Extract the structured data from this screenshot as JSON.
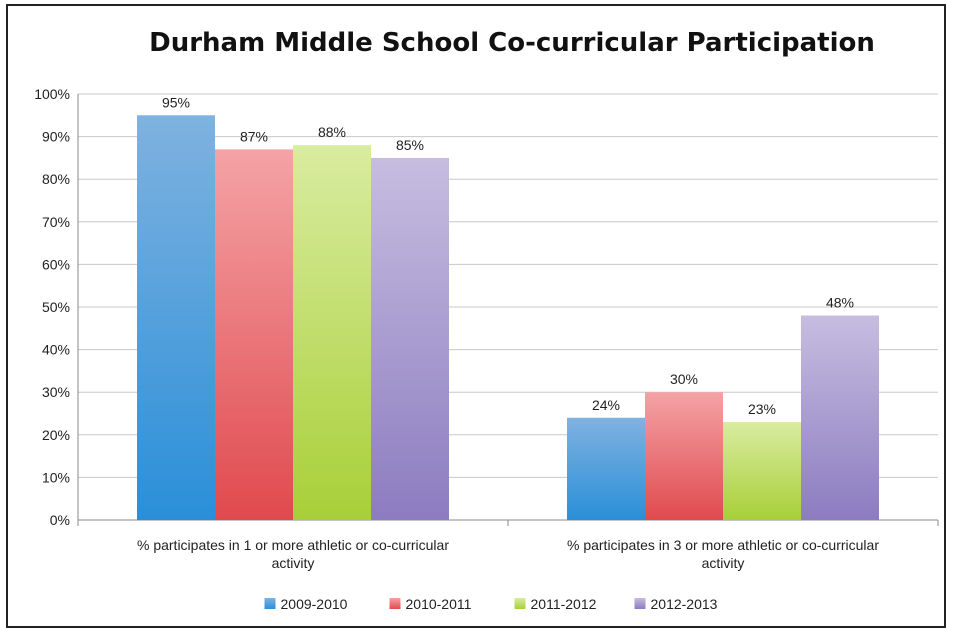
{
  "chart_data": {
    "type": "bar",
    "title": "Durham Middle School Co-curricular Participation",
    "categories": [
      [
        "% participates in 1 or more athletic or co-curricular",
        "activity"
      ],
      [
        "% participates in 3 or more athletic or co-curricular",
        "activity"
      ]
    ],
    "series": [
      {
        "name": "2009-2010",
        "values": [
          95,
          24
        ],
        "labels": [
          "95%",
          "24%"
        ],
        "color": "#7fb2e0",
        "color_dark": "#2a8fd8"
      },
      {
        "name": "2010-2011",
        "values": [
          87,
          30
        ],
        "labels": [
          "87%",
          "30%"
        ],
        "color": "#f4a3a6",
        "color_dark": "#e04a4e"
      },
      {
        "name": "2011-2012",
        "values": [
          88,
          23
        ],
        "labels": [
          "88%",
          "23%"
        ],
        "color": "#d9eca0",
        "color_dark": "#a8cf38"
      },
      {
        "name": "2012-2013",
        "values": [
          85,
          48
        ],
        "labels": [
          "85%",
          "48%"
        ],
        "color": "#c6bde0",
        "color_dark": "#8c7cc0"
      }
    ],
    "ylim": [
      0,
      100
    ],
    "yticks": [
      0,
      10,
      20,
      30,
      40,
      50,
      60,
      70,
      80,
      90,
      100
    ],
    "ytick_labels": [
      "0%",
      "10%",
      "20%",
      "30%",
      "40%",
      "50%",
      "60%",
      "70%",
      "80%",
      "90%",
      "100%"
    ],
    "grid": true,
    "legend_position": "bottom"
  }
}
